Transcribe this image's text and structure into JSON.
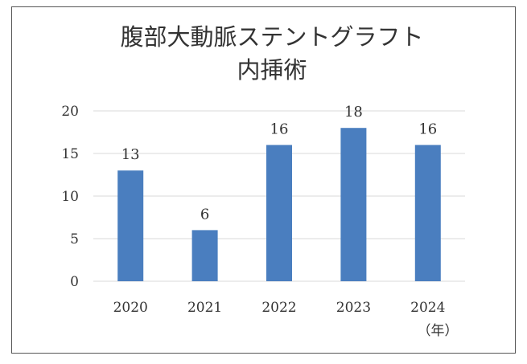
{
  "chart_data": {
    "type": "bar",
    "title": [
      "腹部大動脈ステントグラフト",
      "内挿術"
    ],
    "categories": [
      "2020",
      "2021",
      "2022",
      "2023",
      "2024"
    ],
    "values": [
      13,
      6,
      16,
      18,
      16
    ],
    "ylim": [
      0,
      20
    ],
    "yticks": [
      "0",
      "5",
      "10",
      "15",
      "20"
    ],
    "x_unit": "（年）",
    "grid": true,
    "bar_color": "#4a7ebf",
    "grid_color": "#d9d9d9"
  }
}
